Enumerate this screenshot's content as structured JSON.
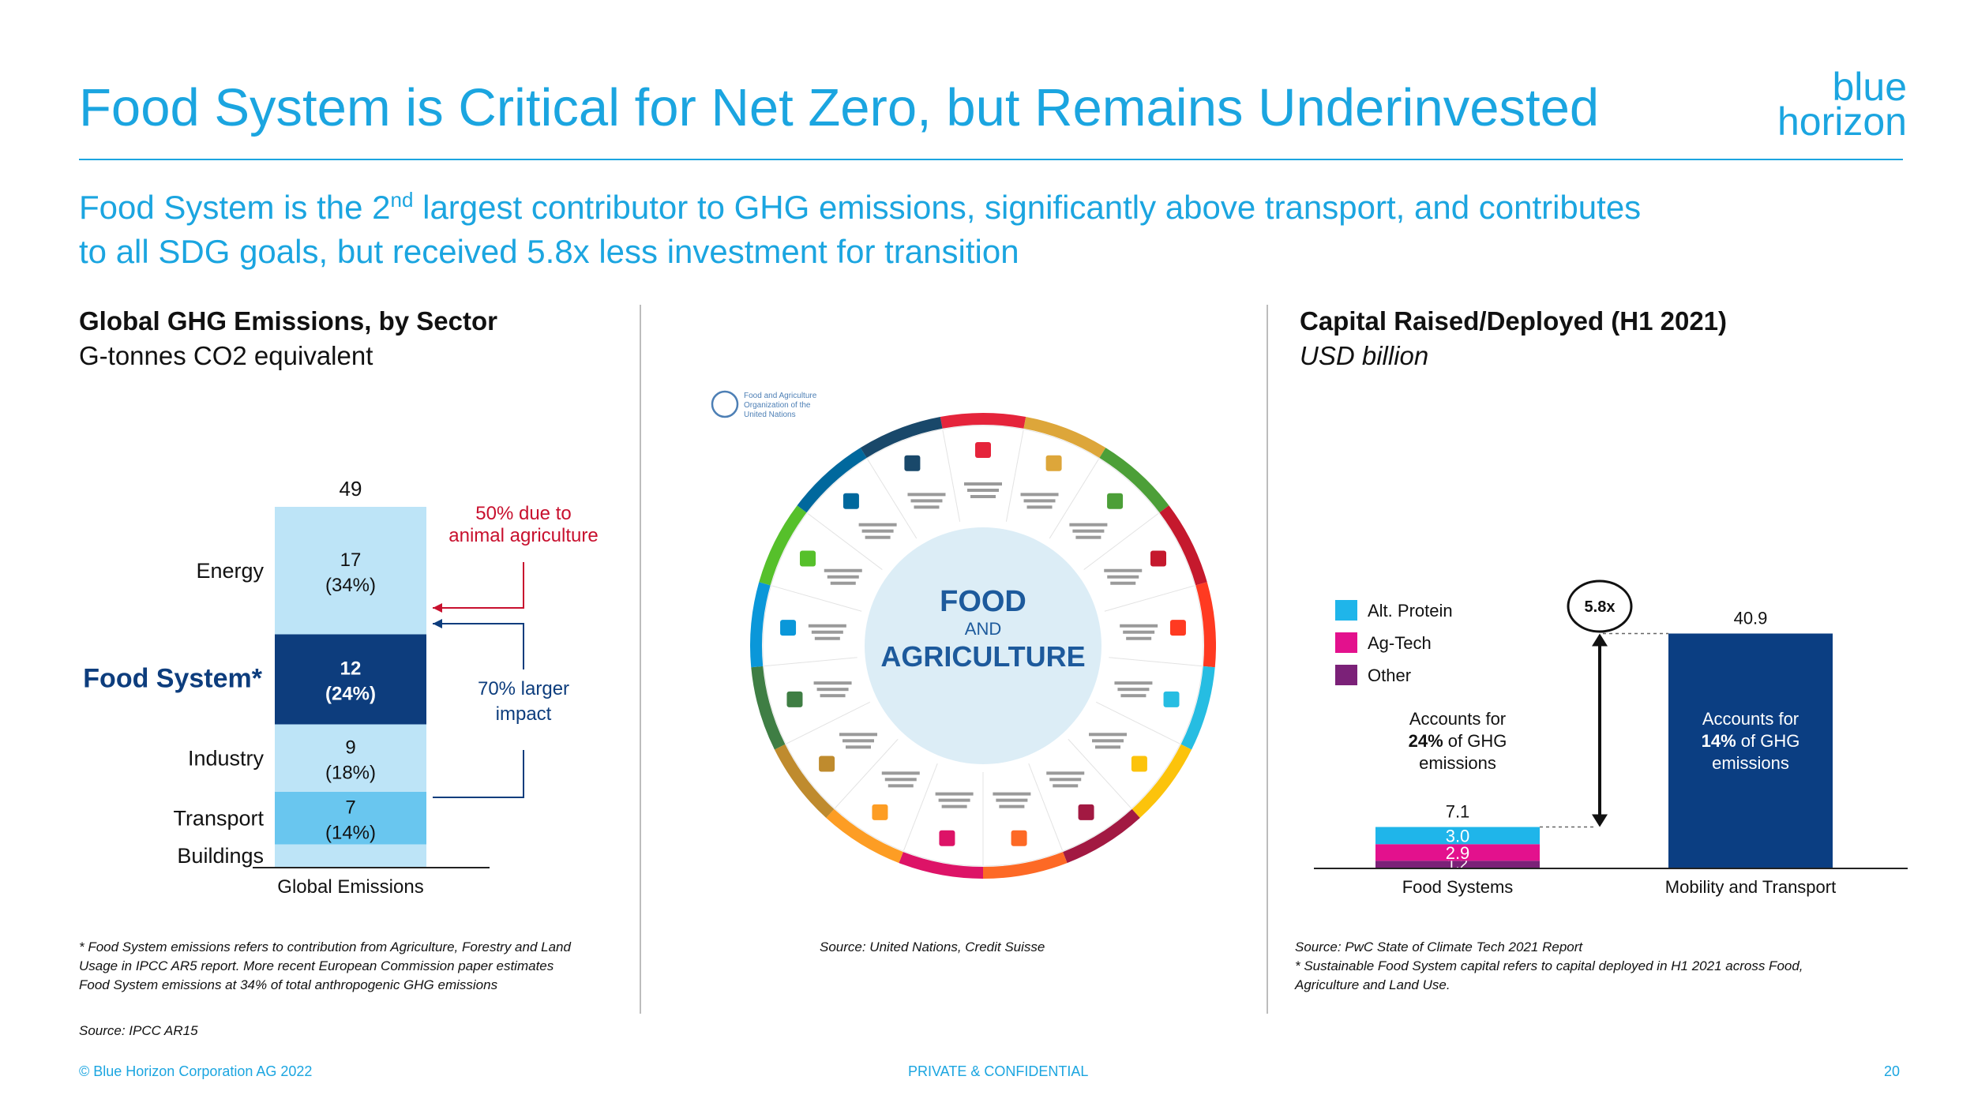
{
  "header": {
    "title": "Food System is Critical for Net Zero, but Remains Underinvested",
    "logo_line1": "blue",
    "logo_line2": "horizon"
  },
  "subtitle": {
    "part1": "Food System is the 2",
    "sup": "nd",
    "part2": " largest contributor to GHG emissions, significantly above transport, and contributes",
    "line2": "to all SDG goals, but received 5.8x less investment for transition"
  },
  "left": {
    "title": "Global GHG Emissions, by Sector",
    "subtitle": "G-tonnes CO2 equivalent",
    "note": "* Food System emissions refers to contribution from Agriculture, Forestry and Land Usage in IPCC AR5 report. More recent European Commission paper estimates Food System emissions at 34% of total anthropogenic GHG emissions",
    "source": "Source: IPCC AR15"
  },
  "middle": {
    "fao_label": "Food and Agriculture Organization of the United Nations",
    "center_line1": "FOOD",
    "center_line2": "AND",
    "center_line3": "AGRICULTURE",
    "source": "Source: United Nations, Credit Suisse",
    "wheel_colors": [
      "#e5243b",
      "#dda63a",
      "#4c9f38",
      "#c5192d",
      "#ff3a21",
      "#26bde2",
      "#fcc30b",
      "#a21942",
      "#fd6925",
      "#dd1367",
      "#fd9d24",
      "#bf8b2e",
      "#3f7e44",
      "#0a97d9",
      "#56c02b",
      "#00689d",
      "#19486a"
    ]
  },
  "right": {
    "title": "Capital Raised/Deployed (H1 2021)",
    "subtitle": "USD billion",
    "source": "Source: PwC State of Climate Tech 2021 Report",
    "note": "* Sustainable Food System capital refers to capital deployed in H1 2021 across Food, Agriculture and Land Use."
  },
  "footer": {
    "copyright": "© Blue Horizon Corporation AG 2022",
    "confidential": "PRIVATE & CONFIDENTIAL",
    "page": "20"
  },
  "chart_data": [
    {
      "type": "bar",
      "stacked": true,
      "categories": [
        "Global Emissions"
      ],
      "total_label": "49",
      "series": [
        {
          "name": "Buildings",
          "value": 3,
          "label": "",
          "color": "#bde4f7"
        },
        {
          "name": "Transport",
          "value": 7,
          "label": "(14%)",
          "color": "#69c6ef"
        },
        {
          "name": "Industry",
          "value": 9,
          "label": "(18%)",
          "color": "#bde4f7"
        },
        {
          "name": "Food System*",
          "value": 12,
          "label": "(24%)",
          "color": "#0d3d7d"
        },
        {
          "name": "Energy",
          "value": 17,
          "label": "(34%)",
          "color": "#bde4f7"
        }
      ],
      "annotations": {
        "food_red": "50% due to animal agriculture",
        "food_red_line1": "50% due to",
        "food_red_line2": "animal agriculture",
        "food_blue_line1": "70% larger",
        "food_blue_line2": "impact"
      }
    },
    {
      "type": "bar",
      "stacked": true,
      "categories": [
        "Food Systems",
        "Mobility and Transport"
      ],
      "series": [
        {
          "name": "Other",
          "values": [
            1.2,
            0
          ],
          "color": "#7b2178"
        },
        {
          "name": "Ag-Tech",
          "values": [
            2.9,
            0
          ],
          "color": "#e3118d"
        },
        {
          "name": "Alt. Protein",
          "values": [
            3.0,
            0
          ],
          "color": "#1fb5ea"
        },
        {
          "name": "Mobility",
          "values": [
            0,
            40.9
          ],
          "color": "#0b3e82"
        }
      ],
      "totals": [
        7.1,
        40.9
      ],
      "ratio_label": "5.8x",
      "legend": [
        "Alt. Protein",
        "Ag-Tech",
        "Other"
      ],
      "annotations": {
        "food_line1": "Accounts for",
        "food_line2_bold": "24%",
        "food_line2_rest": " of GHG",
        "food_line3": "emissions",
        "mob_line1": "Accounts for",
        "mob_line2_bold": "14%",
        "mob_line2_rest": " of GHG",
        "mob_line3": "emissions"
      },
      "ylim": [
        0,
        45
      ]
    }
  ]
}
